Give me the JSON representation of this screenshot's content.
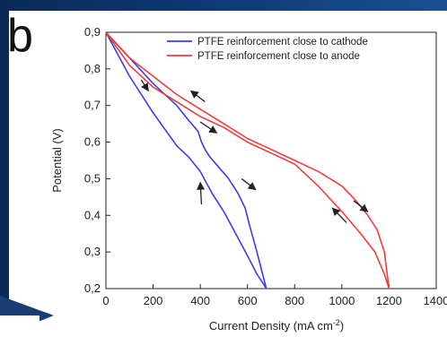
{
  "panel_label": "b",
  "colors": {
    "series_blue": "#3b3bf0",
    "series_red": "#f03c3c",
    "arrow": "#222222",
    "frame_dark": "#0b2a57"
  },
  "chart_data": {
    "type": "line",
    "xlabel": "Current Density (mA cm",
    "xlabel_sup": "-2",
    "xlabel_close": ")",
    "ylabel": "Potential (V)",
    "xlim": [
      0,
      1400
    ],
    "ylim": [
      0.2,
      0.9
    ],
    "xticks": [
      0,
      200,
      400,
      600,
      800,
      1000,
      1200,
      1400
    ],
    "xtick_labels": [
      "0",
      "200",
      "400",
      "600",
      "800",
      "1000",
      "1200",
      "1400"
    ],
    "yticks": [
      0.2,
      0.3,
      0.4,
      0.5,
      0.6,
      0.7,
      0.8,
      0.9
    ],
    "ytick_labels": [
      "0,2",
      "0,3",
      "0,4",
      "0,5",
      "0,6",
      "0,7",
      "0,8",
      "0,9"
    ],
    "legend_position": "top-right",
    "series": [
      {
        "name": "PTFE reinforcement close to cathode",
        "color": "#3b3bf0",
        "forward": {
          "x": [
            0,
            100,
            200,
            300,
            350,
            400,
            450,
            500,
            550,
            600,
            640,
            660,
            680
          ],
          "y": [
            0.9,
            0.78,
            0.68,
            0.59,
            0.56,
            0.52,
            0.46,
            0.41,
            0.35,
            0.29,
            0.24,
            0.22,
            0.2
          ]
        },
        "backward": {
          "x": [
            680,
            640,
            610,
            590,
            560,
            520,
            480,
            440,
            420,
            405,
            390,
            350,
            300,
            200,
            100,
            0
          ],
          "y": [
            0.2,
            0.3,
            0.37,
            0.42,
            0.46,
            0.5,
            0.53,
            0.56,
            0.58,
            0.6,
            0.63,
            0.66,
            0.7,
            0.76,
            0.83,
            0.9
          ]
        }
      },
      {
        "name": "PTFE reinforcement close to anode",
        "color": "#f03c3c",
        "forward": {
          "x": [
            0,
            100,
            200,
            300,
            400,
            500,
            600,
            700,
            800,
            900,
            1000,
            1080,
            1140,
            1180,
            1200
          ],
          "y": [
            0.9,
            0.81,
            0.75,
            0.71,
            0.67,
            0.64,
            0.6,
            0.57,
            0.54,
            0.48,
            0.41,
            0.35,
            0.3,
            0.24,
            0.2
          ]
        },
        "backward": {
          "x": [
            1200,
            1180,
            1150,
            1110,
            1060,
            1000,
            900,
            800,
            700,
            600,
            500,
            400,
            300,
            200,
            100,
            0
          ],
          "y": [
            0.2,
            0.3,
            0.36,
            0.4,
            0.44,
            0.48,
            0.52,
            0.55,
            0.58,
            0.61,
            0.65,
            0.69,
            0.73,
            0.78,
            0.83,
            0.9
          ]
        }
      }
    ],
    "arrows": [
      {
        "x": 150,
        "y": 0.77,
        "dx": 30,
        "dy": -0.03,
        "dir": "down"
      },
      {
        "x": 420,
        "y": 0.71,
        "dx": -60,
        "dy": 0.03,
        "dir": "up"
      },
      {
        "x": 400,
        "y": 0.655,
        "dx": 70,
        "dy": -0.03,
        "dir": "down"
      },
      {
        "x": 575,
        "y": 0.5,
        "dx": 60,
        "dy": -0.03,
        "dir": "down"
      },
      {
        "x": 405,
        "y": 0.43,
        "dx": -5,
        "dy": 0.06,
        "dir": "up"
      },
      {
        "x": 1050,
        "y": 0.44,
        "dx": 60,
        "dy": -0.03,
        "dir": "down"
      },
      {
        "x": 1020,
        "y": 0.38,
        "dx": -60,
        "dy": 0.04,
        "dir": "up"
      }
    ]
  }
}
